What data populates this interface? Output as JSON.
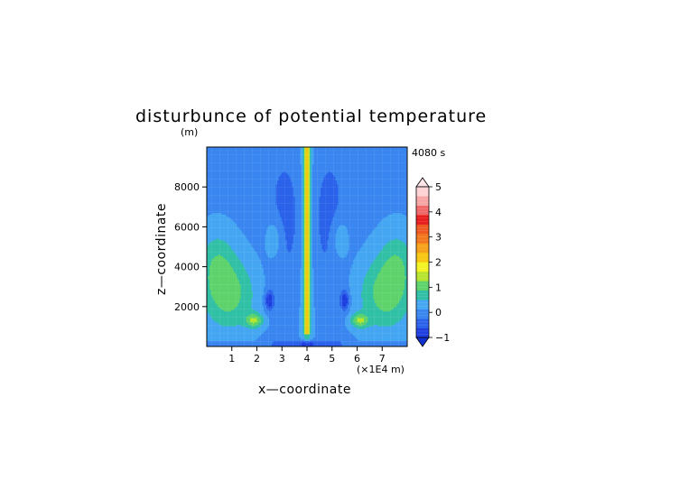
{
  "chart_data": {
    "type": "heatmap",
    "title": "disturbunce of potential temperature",
    "unit": "(m)",
    "time_label": "4080 s",
    "xlabel": "x—coordinate",
    "ylabel": "z—coordinate",
    "x_scale_label": "(×1E4 m)",
    "xlim": [
      0,
      8
    ],
    "ylim": [
      0,
      10000
    ],
    "x_ticks": [
      "1",
      "2",
      "3",
      "4",
      "5",
      "6",
      "7"
    ],
    "y_ticks": [
      "2000",
      "4000",
      "6000",
      "8000"
    ],
    "colorbar": {
      "min": -1,
      "max": 5,
      "tick_labels": [
        "-1",
        "0",
        "1",
        "2",
        "3",
        "4",
        "5"
      ],
      "colors": [
        "#1f3fe0",
        "#2b62ea",
        "#3a86f0",
        "#45a6f2",
        "#31c0a6",
        "#5ed36c",
        "#b7e52f",
        "#f4f323",
        "#f7c711",
        "#f7a21b",
        "#f3781d",
        "#ef5a22",
        "#e81f1f",
        "#f06868",
        "#f7a6a6",
        "#ffd3d3"
      ]
    },
    "field_description": "Symmetric field about x = 4 with a narrow warm vertical column (up to ~2) at the center, broad ~1 regions at low levels near x = 0.5-2 and 6-7.5, weak negative (-0.5 to -1) pockets near x = 2.5 and 5.5 at z ~ 2000 m.",
    "features": [
      {
        "x": 4.0,
        "z": 5000,
        "value": 1.8
      },
      {
        "x": 1.0,
        "z": 2500,
        "value": 0.9
      },
      {
        "x": 7.0,
        "z": 2500,
        "value": 0.9
      },
      {
        "x": 1.5,
        "z": 1300,
        "value": 1.8
      },
      {
        "x": 6.5,
        "z": 1300,
        "value": 1.8
      },
      {
        "x": 1.7,
        "z": 5500,
        "value": 0.9
      },
      {
        "x": 6.3,
        "z": 5500,
        "value": 0.9
      },
      {
        "x": 2.5,
        "z": 2300,
        "value": -0.9
      },
      {
        "x": 5.5,
        "z": 2300,
        "value": -0.9
      },
      {
        "x": 4.0,
        "z": 150,
        "value": -1.0
      }
    ]
  }
}
